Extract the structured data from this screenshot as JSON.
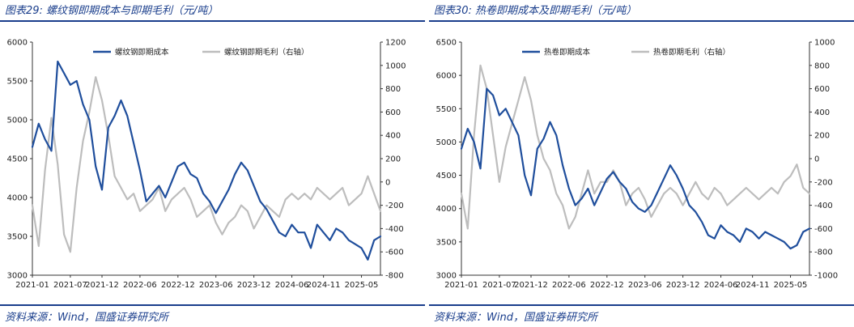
{
  "panels": [
    {
      "figure_title": "图表29:  螺纹钢即期成本与即期毛利（元/吨）",
      "source": "资料来源：Wind，国盛证券研究所",
      "chart_data": {
        "type": "line",
        "title": "",
        "legend": [
          "螺纹钢即期成本",
          "螺纹钢即期毛利（右轴）"
        ],
        "legend_placement": "top-center",
        "grid": false,
        "x_ticks": [
          "2021-01",
          "2021-07",
          "2021-12",
          "2022-06",
          "2022-12",
          "2023-06",
          "2023-12",
          "2024-06",
          "2024-11",
          "2025-05"
        ],
        "x_range": [
          "2021-01",
          "2025-08"
        ],
        "ylim_left": [
          3000,
          6000
        ],
        "yticks_left": [
          3000,
          3500,
          4000,
          4500,
          5000,
          5500,
          6000
        ],
        "ylim_right": [
          -800,
          1200
        ],
        "yticks_right": [
          -800,
          -600,
          -400,
          -200,
          0,
          200,
          400,
          600,
          800,
          1000,
          1200
        ],
        "series": [
          {
            "name": "螺纹钢即期成本",
            "axis": "left",
            "color": "#1f4e9c",
            "x": [
              "2021-01",
              "2021-02",
              "2021-03",
              "2021-04",
              "2021-05",
              "2021-06",
              "2021-07",
              "2021-08",
              "2021-09",
              "2021-10",
              "2021-11",
              "2021-12",
              "2022-01",
              "2022-02",
              "2022-03",
              "2022-04",
              "2022-05",
              "2022-06",
              "2022-07",
              "2022-08",
              "2022-09",
              "2022-10",
              "2022-11",
              "2022-12",
              "2023-01",
              "2023-02",
              "2023-03",
              "2023-04",
              "2023-05",
              "2023-06",
              "2023-07",
              "2023-08",
              "2023-09",
              "2023-10",
              "2023-11",
              "2023-12",
              "2024-01",
              "2024-02",
              "2024-03",
              "2024-04",
              "2024-05",
              "2024-06",
              "2024-07",
              "2024-08",
              "2024-09",
              "2024-10",
              "2024-11",
              "2024-12",
              "2025-01",
              "2025-02",
              "2025-03",
              "2025-04",
              "2025-05",
              "2025-06",
              "2025-07",
              "2025-08"
            ],
            "values": [
              4650,
              4950,
              4750,
              4600,
              5750,
              5600,
              5450,
              5500,
              5200,
              5000,
              4400,
              4100,
              4900,
              5050,
              5250,
              5050,
              4700,
              4350,
              3950,
              4050,
              4150,
              4000,
              4200,
              4400,
              4450,
              4300,
              4250,
              4050,
              3950,
              3800,
              3950,
              4100,
              4300,
              4450,
              4350,
              4150,
              3950,
              3850,
              3700,
              3550,
              3500,
              3650,
              3550,
              3550,
              3350,
              3650,
              3550,
              3450,
              3600,
              3550,
              3450,
              3400,
              3350,
              3200,
              3450,
              3500
            ]
          },
          {
            "name": "螺纹钢即期毛利（右轴）",
            "axis": "right",
            "color": "#bdbdbd",
            "x": [
              "2021-01",
              "2021-02",
              "2021-03",
              "2021-04",
              "2021-05",
              "2021-06",
              "2021-07",
              "2021-08",
              "2021-09",
              "2021-10",
              "2021-11",
              "2021-12",
              "2022-01",
              "2022-02",
              "2022-03",
              "2022-04",
              "2022-05",
              "2022-06",
              "2022-07",
              "2022-08",
              "2022-09",
              "2022-10",
              "2022-11",
              "2022-12",
              "2023-01",
              "2023-02",
              "2023-03",
              "2023-04",
              "2023-05",
              "2023-06",
              "2023-07",
              "2023-08",
              "2023-09",
              "2023-10",
              "2023-11",
              "2023-12",
              "2024-01",
              "2024-02",
              "2024-03",
              "2024-04",
              "2024-05",
              "2024-06",
              "2024-07",
              "2024-08",
              "2024-09",
              "2024-10",
              "2024-11",
              "2024-12",
              "2025-01",
              "2025-02",
              "2025-03",
              "2025-04",
              "2025-05",
              "2025-06",
              "2025-07",
              "2025-08"
            ],
            "values": [
              -200,
              -550,
              100,
              550,
              150,
              -450,
              -600,
              -50,
              350,
              600,
              900,
              700,
              400,
              50,
              -50,
              -150,
              -100,
              -250,
              -200,
              -150,
              -50,
              -250,
              -150,
              -100,
              -50,
              -150,
              -300,
              -250,
              -200,
              -350,
              -450,
              -350,
              -300,
              -200,
              -250,
              -400,
              -300,
              -200,
              -250,
              -300,
              -150,
              -100,
              -150,
              -100,
              -150,
              -50,
              -100,
              -150,
              -100,
              -50,
              -200,
              -150,
              -100,
              50,
              -100,
              -250
            ]
          }
        ]
      }
    },
    {
      "figure_title": "图表30:  热卷即期成本及即期毛利（元/吨）",
      "source": "资料来源：Wind，国盛证券研究所",
      "chart_data": {
        "type": "line",
        "title": "",
        "legend": [
          "热卷即期成本",
          "热卷即期毛利（右轴）"
        ],
        "legend_placement": "top-center",
        "grid": false,
        "x_ticks": [
          "2021-01",
          "2021-07",
          "2021-12",
          "2022-06",
          "2022-12",
          "2023-06",
          "2023-12",
          "2024-06",
          "2024-11",
          "2025-05"
        ],
        "x_range": [
          "2021-01",
          "2025-08"
        ],
        "ylim_left": [
          3000,
          6500
        ],
        "yticks_left": [
          3000,
          3500,
          4000,
          4500,
          5000,
          5500,
          6000,
          6500
        ],
        "ylim_right": [
          -1000,
          1000
        ],
        "yticks_right": [
          -1000,
          -800,
          -600,
          -400,
          -200,
          0,
          200,
          400,
          600,
          800,
          1000
        ],
        "series": [
          {
            "name": "热卷即期成本",
            "axis": "left",
            "color": "#1f4e9c",
            "x": [
              "2021-01",
              "2021-02",
              "2021-03",
              "2021-04",
              "2021-05",
              "2021-06",
              "2021-07",
              "2021-08",
              "2021-09",
              "2021-10",
              "2021-11",
              "2021-12",
              "2022-01",
              "2022-02",
              "2022-03",
              "2022-04",
              "2022-05",
              "2022-06",
              "2022-07",
              "2022-08",
              "2022-09",
              "2022-10",
              "2022-11",
              "2022-12",
              "2023-01",
              "2023-02",
              "2023-03",
              "2023-04",
              "2023-05",
              "2023-06",
              "2023-07",
              "2023-08",
              "2023-09",
              "2023-10",
              "2023-11",
              "2023-12",
              "2024-01",
              "2024-02",
              "2024-03",
              "2024-04",
              "2024-05",
              "2024-06",
              "2024-07",
              "2024-08",
              "2024-09",
              "2024-10",
              "2024-11",
              "2024-12",
              "2025-01",
              "2025-02",
              "2025-03",
              "2025-04",
              "2025-05",
              "2025-06",
              "2025-07",
              "2025-08"
            ],
            "values": [
              4900,
              5200,
              5000,
              4600,
              5800,
              5700,
              5400,
              5500,
              5300,
              5100,
              4500,
              4200,
              4900,
              5050,
              5300,
              5100,
              4650,
              4300,
              4050,
              4150,
              4300,
              4050,
              4250,
              4450,
              4550,
              4400,
              4300,
              4100,
              4000,
              3950,
              4050,
              4250,
              4450,
              4650,
              4500,
              4300,
              4050,
              3950,
              3800,
              3600,
              3550,
              3750,
              3650,
              3600,
              3500,
              3700,
              3650,
              3550,
              3650,
              3600,
              3550,
              3500,
              3400,
              3450,
              3650,
              3700
            ]
          },
          {
            "name": "热卷即期毛利（右轴）",
            "axis": "right",
            "color": "#bdbdbd",
            "x": [
              "2021-01",
              "2021-02",
              "2021-03",
              "2021-04",
              "2021-05",
              "2021-06",
              "2021-07",
              "2021-08",
              "2021-09",
              "2021-10",
              "2021-11",
              "2021-12",
              "2022-01",
              "2022-02",
              "2022-03",
              "2022-04",
              "2022-05",
              "2022-06",
              "2022-07",
              "2022-08",
              "2022-09",
              "2022-10",
              "2022-11",
              "2022-12",
              "2023-01",
              "2023-02",
              "2023-03",
              "2023-04",
              "2023-05",
              "2023-06",
              "2023-07",
              "2023-08",
              "2023-09",
              "2023-10",
              "2023-11",
              "2023-12",
              "2024-01",
              "2024-02",
              "2024-03",
              "2024-04",
              "2024-05",
              "2024-06",
              "2024-07",
              "2024-08",
              "2024-09",
              "2024-10",
              "2024-11",
              "2024-12",
              "2025-01",
              "2025-02",
              "2025-03",
              "2025-04",
              "2025-05",
              "2025-06",
              "2025-07",
              "2025-08"
            ],
            "values": [
              -300,
              -600,
              200,
              800,
              600,
              200,
              -200,
              100,
              300,
              500,
              700,
              500,
              200,
              0,
              -100,
              -300,
              -400,
              -600,
              -500,
              -300,
              -100,
              -300,
              -200,
              -200,
              -100,
              -200,
              -400,
              -300,
              -250,
              -350,
              -500,
              -400,
              -300,
              -250,
              -300,
              -400,
              -300,
              -200,
              -300,
              -350,
              -250,
              -300,
              -400,
              -350,
              -300,
              -250,
              -300,
              -350,
              -300,
              -250,
              -300,
              -200,
              -150,
              -50,
              -250,
              -300
            ]
          }
        ]
      }
    }
  ]
}
